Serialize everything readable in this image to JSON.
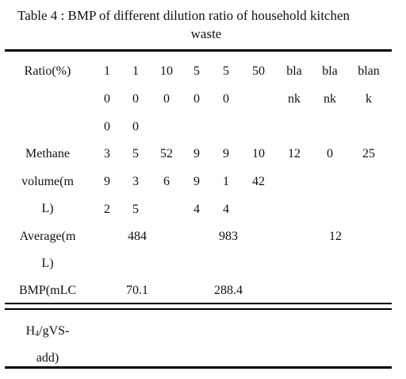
{
  "caption": {
    "line1": "Table 4 : BMP of different dilution ratio of household kitchen",
    "line2": "waste"
  },
  "table": {
    "ratio": {
      "label": "Ratio(%)",
      "cells": [
        [
          "1",
          "0",
          "0"
        ],
        [
          "1",
          "0",
          "0"
        ],
        [
          "10",
          "0"
        ],
        [
          "5",
          "0"
        ],
        [
          "5",
          "0"
        ],
        [
          "50"
        ],
        [
          "bla",
          "nk"
        ],
        [
          "bla",
          "nk"
        ],
        [
          "blan",
          "k"
        ]
      ]
    },
    "methane": {
      "label": [
        "Methane",
        "volume(m",
        "L)"
      ],
      "cells": [
        [
          "3",
          "9",
          "2"
        ],
        [
          "5",
          "3",
          "5"
        ],
        [
          "52",
          "6"
        ],
        [
          "9",
          "9",
          "4"
        ],
        [
          "9",
          "1",
          "4"
        ],
        [
          "10",
          "42"
        ],
        [
          "12"
        ],
        [
          "0"
        ],
        [
          "25"
        ]
      ]
    },
    "average": {
      "label": [
        "Average(m",
        "L)"
      ],
      "values": [
        "484",
        "983",
        "12"
      ]
    },
    "bmp": {
      "label_line1": "BMP(mLC",
      "label_line2_pre": "H",
      "label_line2_sub": "4",
      "label_line2_post": "/gVS-",
      "label_line3": "add)",
      "values": [
        "70.1",
        "288.4"
      ]
    }
  }
}
